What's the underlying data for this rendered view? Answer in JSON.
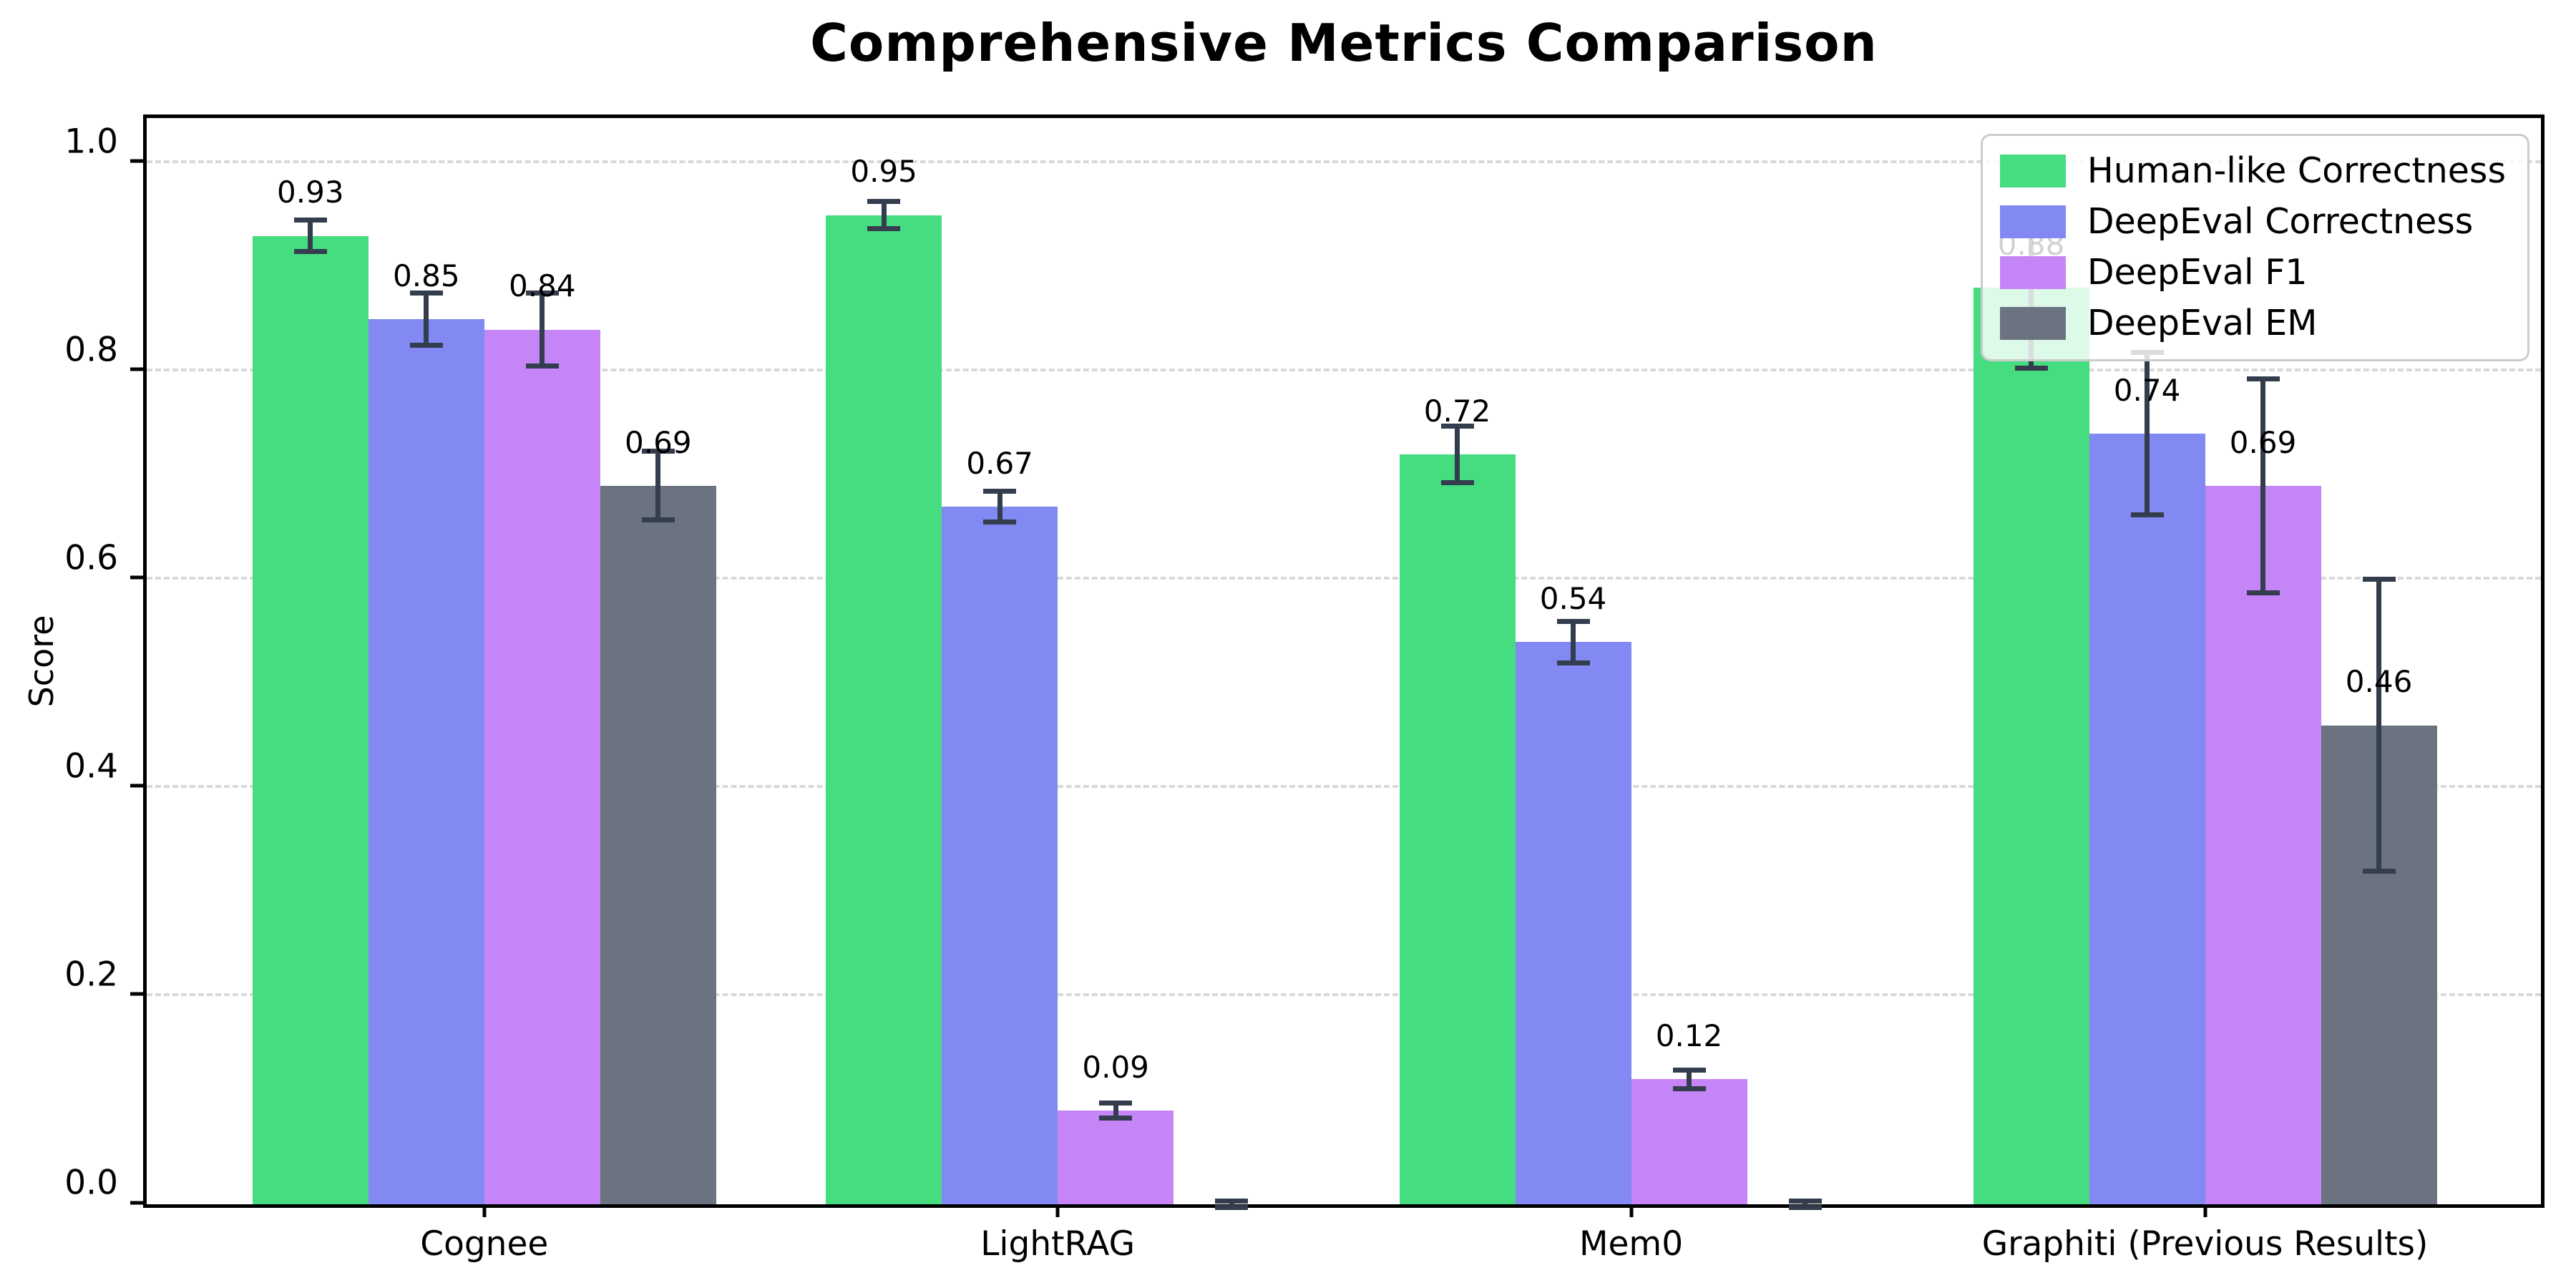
{
  "chart_data": {
    "type": "bar",
    "title": "Comprehensive Metrics Comparison",
    "xlabel": "",
    "ylabel": "Score",
    "ylim": [
      0,
      1.05
    ],
    "ytick_values": [
      0.0,
      0.2,
      0.4,
      0.6,
      0.8,
      1.0
    ],
    "ytick_labels": [
      "0.0",
      "0.2",
      "0.4",
      "0.6",
      "0.8",
      "1.0"
    ],
    "grid": "horizontal-dashed",
    "legend_position": "upper-right",
    "categories": [
      "Cognee",
      "LightRAG",
      "Mem0",
      "Graphiti (Previous Results)"
    ],
    "series": [
      {
        "name": "Human-like Correctness",
        "color": "#46dc80",
        "values": [
          0.93,
          0.95,
          0.72,
          0.88
        ],
        "errors": [
          0.015,
          0.013,
          0.027,
          0.077
        ],
        "labels": [
          "0.93",
          "0.95",
          "0.72",
          "0.88"
        ]
      },
      {
        "name": "DeepEval Correctness",
        "color": "#8289f2",
        "values": [
          0.85,
          0.67,
          0.54,
          0.74
        ],
        "errors": [
          0.025,
          0.015,
          0.02,
          0.078
        ],
        "labels": [
          "0.85",
          "0.67",
          "0.54",
          "0.74"
        ]
      },
      {
        "name": "DeepEval F1",
        "color": "#c585f7",
        "values": [
          0.84,
          0.09,
          0.12,
          0.69
        ],
        "errors": [
          0.035,
          0.007,
          0.009,
          0.103
        ],
        "labels": [
          "0.84",
          "0.09",
          "0.12",
          "0.69"
        ]
      },
      {
        "name": "DeepEval EM",
        "color": "#6b7280",
        "values": [
          0.69,
          0.0,
          0.0,
          0.46
        ],
        "errors": [
          0.033,
          0.003,
          0.003,
          0.14
        ],
        "labels": [
          "0.69",
          "",
          "",
          "0.46"
        ]
      }
    ],
    "group_centers_fraction": [
      0.141,
      0.3805,
      0.62,
      0.8597
    ],
    "colors": {
      "error_bar": "#333d4d",
      "grid": "#d9d9d9",
      "spine": "#000000",
      "background": "#ffffff"
    }
  }
}
